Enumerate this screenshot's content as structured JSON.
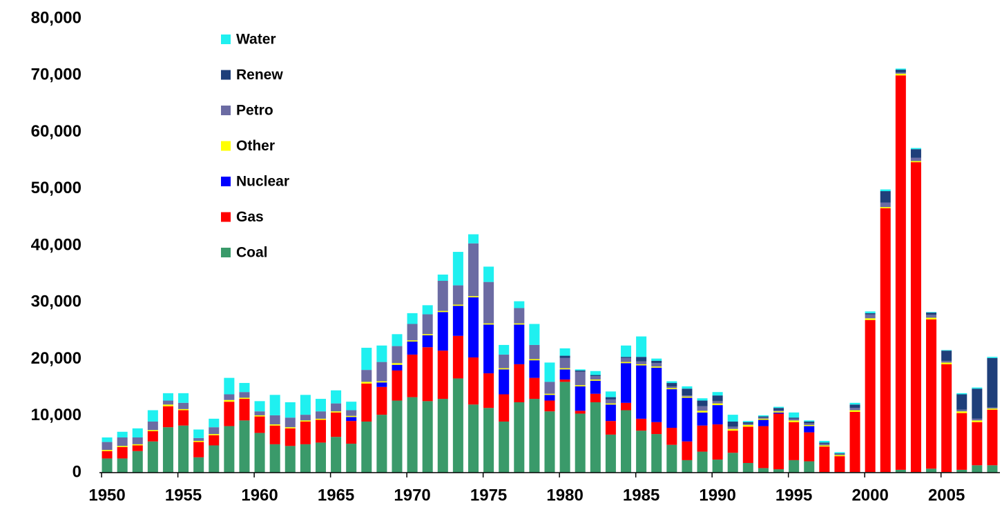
{
  "chart_data": {
    "type": "bar",
    "stacked": true,
    "x": [
      1950,
      1951,
      1952,
      1953,
      1954,
      1955,
      1956,
      1957,
      1958,
      1959,
      1960,
      1961,
      1962,
      1963,
      1964,
      1965,
      1966,
      1967,
      1968,
      1969,
      1970,
      1971,
      1972,
      1973,
      1974,
      1975,
      1976,
      1977,
      1978,
      1979,
      1980,
      1981,
      1982,
      1983,
      1984,
      1985,
      1986,
      1987,
      1988,
      1989,
      1990,
      1991,
      1992,
      1993,
      1994,
      1995,
      1996,
      1997,
      1998,
      1999,
      2000,
      2001,
      2002,
      2003,
      2004,
      2005,
      2006,
      2007,
      2008
    ],
    "xlim": [
      1949.5,
      2008.5
    ],
    "xticks": [
      1950,
      1955,
      1960,
      1965,
      1970,
      1975,
      1980,
      1985,
      1990,
      1995,
      2000,
      2005
    ],
    "ylim": [
      0,
      80000
    ],
    "yticks": [
      0,
      {
        "value": 10000,
        "label": "10,000"
      },
      {
        "value": 20000,
        "label": "20,000"
      },
      {
        "value": 30000,
        "label": "30,000"
      },
      {
        "value": 40000,
        "label": "40,000"
      },
      {
        "value": 50000,
        "label": "50,000"
      },
      {
        "value": 60000,
        "label": "60,000"
      },
      {
        "value": 70000,
        "label": "70,000"
      },
      {
        "value": 80000,
        "label": "80,000"
      }
    ],
    "grid": false,
    "legend": "upper left",
    "series": [
      {
        "name": "Coal",
        "color": "#3a9a6a",
        "values": [
          2500,
          2500,
          3800,
          5500,
          8000,
          8300,
          2700,
          4800,
          8200,
          9200,
          7000,
          5000,
          4700,
          5000,
          5300,
          6300,
          5100,
          9000,
          10200,
          12700,
          13300,
          12600,
          13000,
          16600,
          12000,
          11400,
          9000,
          12400,
          13000,
          10800,
          16000,
          10400,
          12400,
          6700,
          11000,
          7400,
          6800,
          4900,
          2200,
          3700,
          2300,
          3500,
          1700,
          800,
          600,
          2200,
          2000,
          100,
          100,
          100,
          100,
          100,
          500,
          100,
          700,
          100,
          500,
          1300,
          1300
        ]
      },
      {
        "name": "Gas",
        "color": "#ff0000",
        "values": [
          1300,
          2000,
          1000,
          1800,
          3700,
          2700,
          2700,
          1800,
          4300,
          3800,
          2900,
          3300,
          3100,
          4000,
          4000,
          4300,
          4000,
          6700,
          4900,
          5300,
          7500,
          9500,
          8500,
          7500,
          8300,
          6100,
          4800,
          6700,
          3700,
          1900,
          400,
          500,
          1500,
          2400,
          1300,
          2100,
          2100,
          3000,
          3300,
          4600,
          6200,
          3900,
          6400,
          7400,
          9800,
          6700,
          5100,
          4500,
          2800,
          10600,
          26800,
          46500,
          69500,
          54600,
          26300,
          19000,
          10000,
          7600,
          9800
        ]
      },
      {
        "name": "Nuclear",
        "color": "#0000ff",
        "values": [
          0,
          0,
          0,
          0,
          0,
          0,
          0,
          0,
          0,
          0,
          0,
          0,
          0,
          0,
          0,
          0,
          700,
          0,
          800,
          1000,
          2300,
          2100,
          6800,
          5300,
          10600,
          8600,
          4400,
          7000,
          3100,
          1000,
          1800,
          4300,
          2300,
          2900,
          7000,
          9400,
          9600,
          6800,
          7700,
          2300,
          3400,
          0,
          0,
          1100,
          200,
          0,
          1100,
          0,
          0,
          0,
          0,
          0,
          0,
          0,
          0,
          0,
          0,
          0,
          0
        ]
      },
      {
        "name": "Other",
        "color": "#ffff00",
        "values": [
          200,
          200,
          200,
          200,
          300,
          200,
          200,
          200,
          300,
          200,
          200,
          200,
          200,
          200,
          200,
          200,
          200,
          300,
          200,
          300,
          200,
          200,
          200,
          200,
          200,
          200,
          200,
          200,
          200,
          200,
          200,
          200,
          200,
          200,
          200,
          200,
          200,
          200,
          200,
          300,
          300,
          300,
          300,
          200,
          200,
          300,
          200,
          200,
          200,
          300,
          300,
          200,
          300,
          200,
          300,
          300,
          300,
          300,
          200
        ]
      },
      {
        "name": "Petro",
        "color": "#6b6ba3",
        "values": [
          1400,
          1500,
          1200,
          1500,
          700,
          1100,
          500,
          1200,
          1000,
          1000,
          700,
          1600,
          1700,
          1000,
          1300,
          1400,
          1000,
          2100,
          3400,
          3000,
          2900,
          3500,
          5300,
          3400,
          9300,
          7300,
          2400,
          2700,
          2500,
          2100,
          1800,
          2400,
          600,
          700,
          700,
          500,
          600,
          300,
          200,
          800,
          400,
          400,
          200,
          200,
          200,
          300,
          300,
          300,
          200,
          400,
          700,
          800,
          200,
          600,
          500,
          300,
          300,
          300,
          200
        ]
      },
      {
        "name": "Renew",
        "color": "#1f3f7a",
        "values": [
          0,
          0,
          0,
          0,
          0,
          0,
          0,
          0,
          0,
          0,
          0,
          0,
          0,
          0,
          0,
          0,
          0,
          0,
          0,
          0,
          0,
          0,
          0,
          0,
          0,
          0,
          0,
          0,
          0,
          0,
          400,
          200,
          200,
          400,
          200,
          800,
          400,
          600,
          1200,
          1000,
          1000,
          900,
          300,
          200,
          400,
          200,
          300,
          200,
          100,
          600,
          200,
          2000,
          500,
          1500,
          400,
          1800,
          2700,
          5300,
          8700
        ]
      },
      {
        "name": "Water",
        "color": "#1ff0f0",
        "values": [
          800,
          1000,
          1600,
          2000,
          1300,
          1700,
          1500,
          1500,
          2900,
          1600,
          1800,
          3600,
          2700,
          3500,
          2200,
          2300,
          1500,
          3900,
          2900,
          2100,
          1900,
          1600,
          1100,
          5900,
          1600,
          2700,
          1700,
          1200,
          3700,
          3400,
          1300,
          200,
          700,
          1000,
          2000,
          3600,
          400,
          300,
          400,
          400,
          600,
          1200,
          200,
          200,
          200,
          900,
          200,
          300,
          200,
          300,
          300,
          300,
          200,
          200,
          100,
          100,
          200,
          200,
          200
        ]
      }
    ]
  }
}
